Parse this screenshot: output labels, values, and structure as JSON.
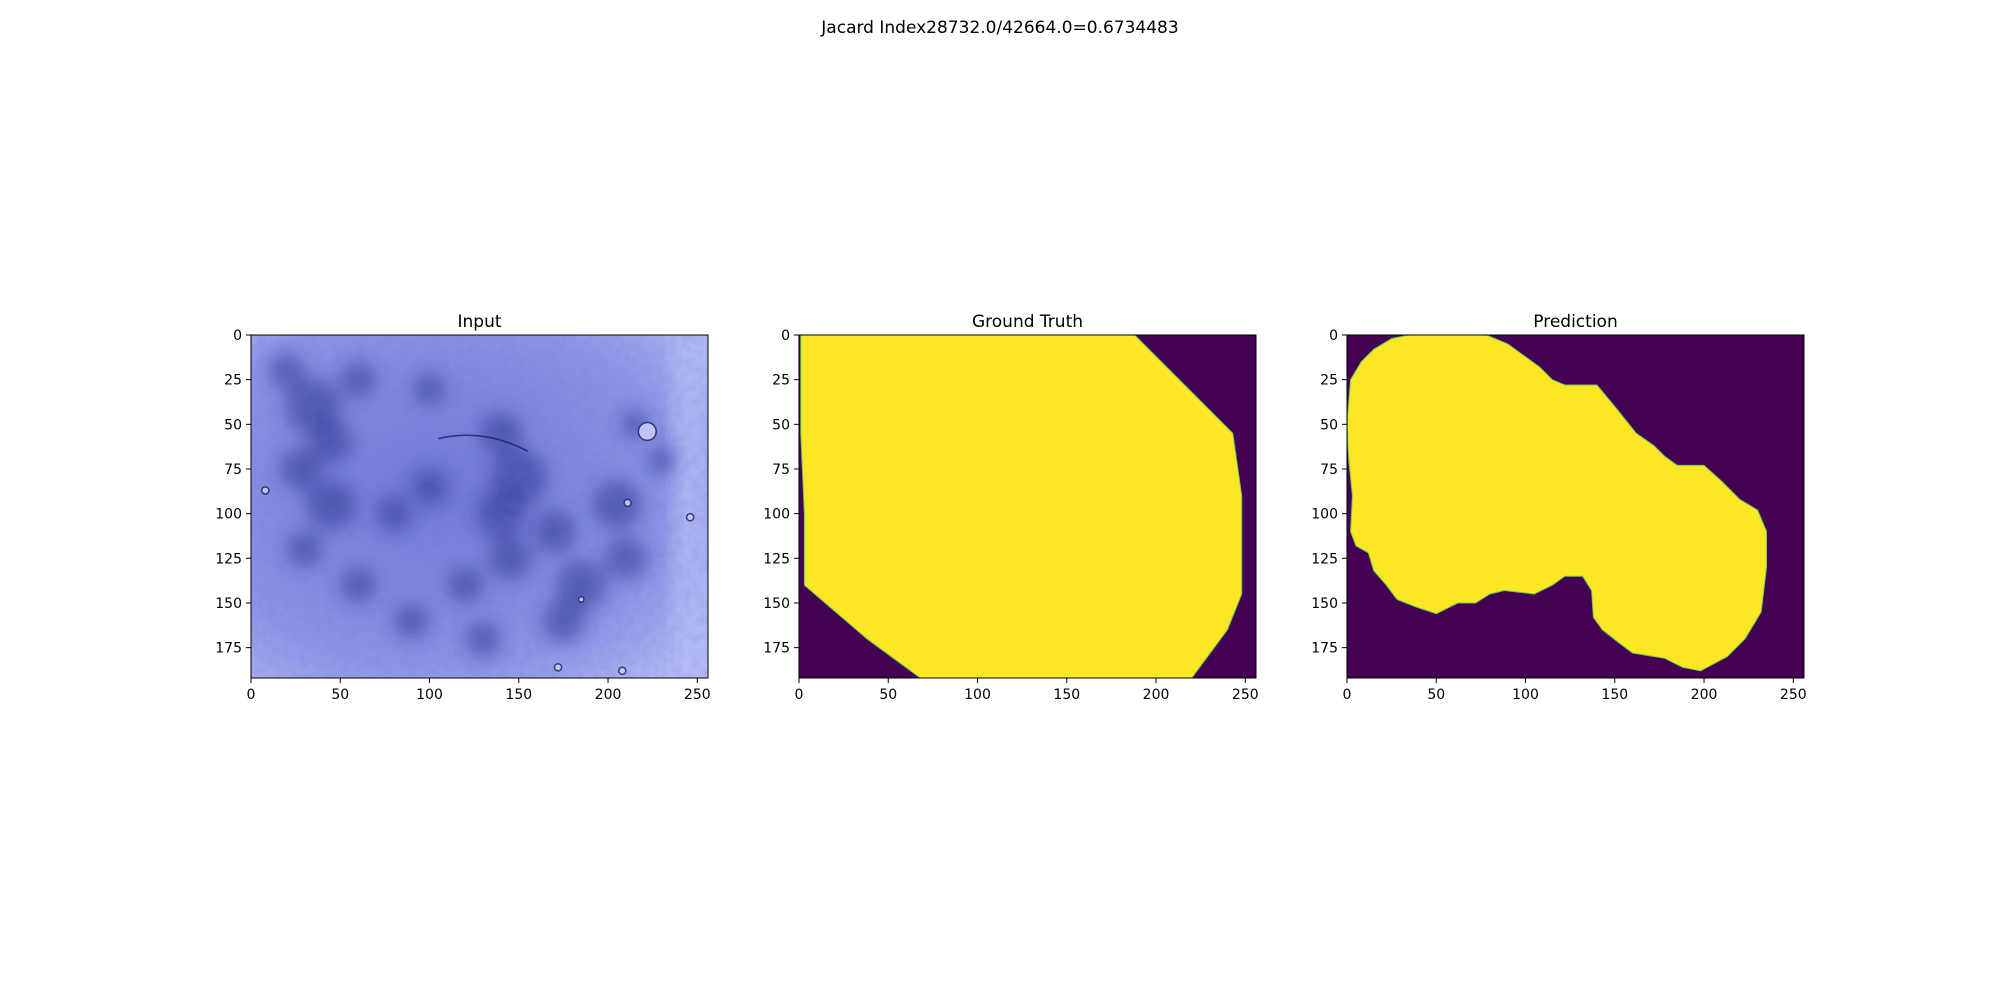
{
  "figure": {
    "suptitle": "Jacard Index28732.0/42664.0=0.6734483"
  },
  "colors": {
    "mask_background": "#440154",
    "mask_foreground": "#fde725",
    "input_base": "#8c94e6",
    "input_dark": "#2a338f",
    "input_light": "#b7bdf6",
    "axis": "#000000"
  },
  "chart_data": [
    {
      "type": "image",
      "title": "Input",
      "image_kind": "dermoscopy-rgb",
      "xlim": [
        0,
        256
      ],
      "ylim": [
        192,
        0
      ],
      "xticks": [
        0,
        50,
        100,
        150,
        200,
        250
      ],
      "yticks": [
        0,
        25,
        50,
        75,
        100,
        125,
        150,
        175
      ],
      "dark_spots": [
        [
          35,
          40,
          16
        ],
        [
          20,
          20,
          10
        ],
        [
          60,
          25,
          10
        ],
        [
          45,
          60,
          12
        ],
        [
          28,
          75,
          12
        ],
        [
          45,
          95,
          14
        ],
        [
          80,
          100,
          10
        ],
        [
          140,
          55,
          12
        ],
        [
          150,
          80,
          16
        ],
        [
          140,
          100,
          14
        ],
        [
          145,
          125,
          12
        ],
        [
          170,
          110,
          12
        ],
        [
          205,
          95,
          14
        ],
        [
          210,
          125,
          12
        ],
        [
          185,
          140,
          14
        ],
        [
          175,
          160,
          12
        ],
        [
          230,
          70,
          8
        ],
        [
          100,
          85,
          10
        ],
        [
          120,
          140,
          10
        ],
        [
          60,
          140,
          10
        ],
        [
          90,
          160,
          10
        ],
        [
          130,
          170,
          10
        ],
        [
          215,
          50,
          8
        ],
        [
          100,
          30,
          9
        ],
        [
          30,
          120,
          10
        ]
      ],
      "bubbles": [
        [
          222,
          54,
          5
        ],
        [
          211,
          94,
          2
        ],
        [
          246,
          102,
          2
        ],
        [
          172,
          186,
          2
        ],
        [
          208,
          188,
          2
        ],
        [
          185,
          148,
          1.5
        ],
        [
          8,
          87,
          2
        ]
      ]
    },
    {
      "type": "image",
      "title": "Ground Truth",
      "image_kind": "binary-mask",
      "xlim": [
        0,
        256
      ],
      "ylim": [
        192,
        0
      ],
      "xticks": [
        0,
        50,
        100,
        150,
        200,
        250
      ],
      "yticks": [
        0,
        25,
        50,
        75,
        100,
        125,
        150,
        175
      ],
      "mask_polygon": [
        [
          1,
          0
        ],
        [
          188,
          0
        ],
        [
          243,
          55
        ],
        [
          248,
          90
        ],
        [
          248,
          145
        ],
        [
          240,
          165
        ],
        [
          220,
          192
        ],
        [
          68,
          192
        ],
        [
          38,
          170
        ],
        [
          3,
          140
        ],
        [
          3,
          100
        ],
        [
          1,
          55
        ]
      ]
    },
    {
      "type": "image",
      "title": "Prediction",
      "image_kind": "binary-mask",
      "xlim": [
        0,
        256
      ],
      "ylim": [
        192,
        0
      ],
      "xticks": [
        0,
        50,
        100,
        150,
        200,
        250
      ],
      "yticks": [
        0,
        25,
        50,
        75,
        100,
        125,
        150,
        175
      ],
      "mask_polygon": [
        [
          35,
          0
        ],
        [
          78,
          0
        ],
        [
          90,
          5
        ],
        [
          108,
          18
        ],
        [
          115,
          25
        ],
        [
          122,
          28
        ],
        [
          140,
          28
        ],
        [
          150,
          40
        ],
        [
          162,
          55
        ],
        [
          172,
          62
        ],
        [
          178,
          68
        ],
        [
          185,
          73
        ],
        [
          200,
          73
        ],
        [
          210,
          82
        ],
        [
          220,
          92
        ],
        [
          230,
          98
        ],
        [
          235,
          110
        ],
        [
          235,
          130
        ],
        [
          232,
          155
        ],
        [
          223,
          170
        ],
        [
          213,
          180
        ],
        [
          198,
          188
        ],
        [
          188,
          186
        ],
        [
          178,
          181
        ],
        [
          160,
          178
        ],
        [
          152,
          172
        ],
        [
          143,
          165
        ],
        [
          138,
          158
        ],
        [
          137,
          143
        ],
        [
          132,
          135
        ],
        [
          122,
          135
        ],
        [
          115,
          140
        ],
        [
          105,
          145
        ],
        [
          88,
          143
        ],
        [
          80,
          145
        ],
        [
          72,
          150
        ],
        [
          62,
          150
        ],
        [
          50,
          156
        ],
        [
          38,
          152
        ],
        [
          28,
          148
        ],
        [
          22,
          140
        ],
        [
          15,
          132
        ],
        [
          12,
          122
        ],
        [
          5,
          118
        ],
        [
          2,
          110
        ],
        [
          3,
          90
        ],
        [
          1,
          70
        ],
        [
          0,
          50
        ],
        [
          2,
          25
        ],
        [
          8,
          15
        ],
        [
          15,
          8
        ],
        [
          25,
          2
        ]
      ]
    }
  ]
}
